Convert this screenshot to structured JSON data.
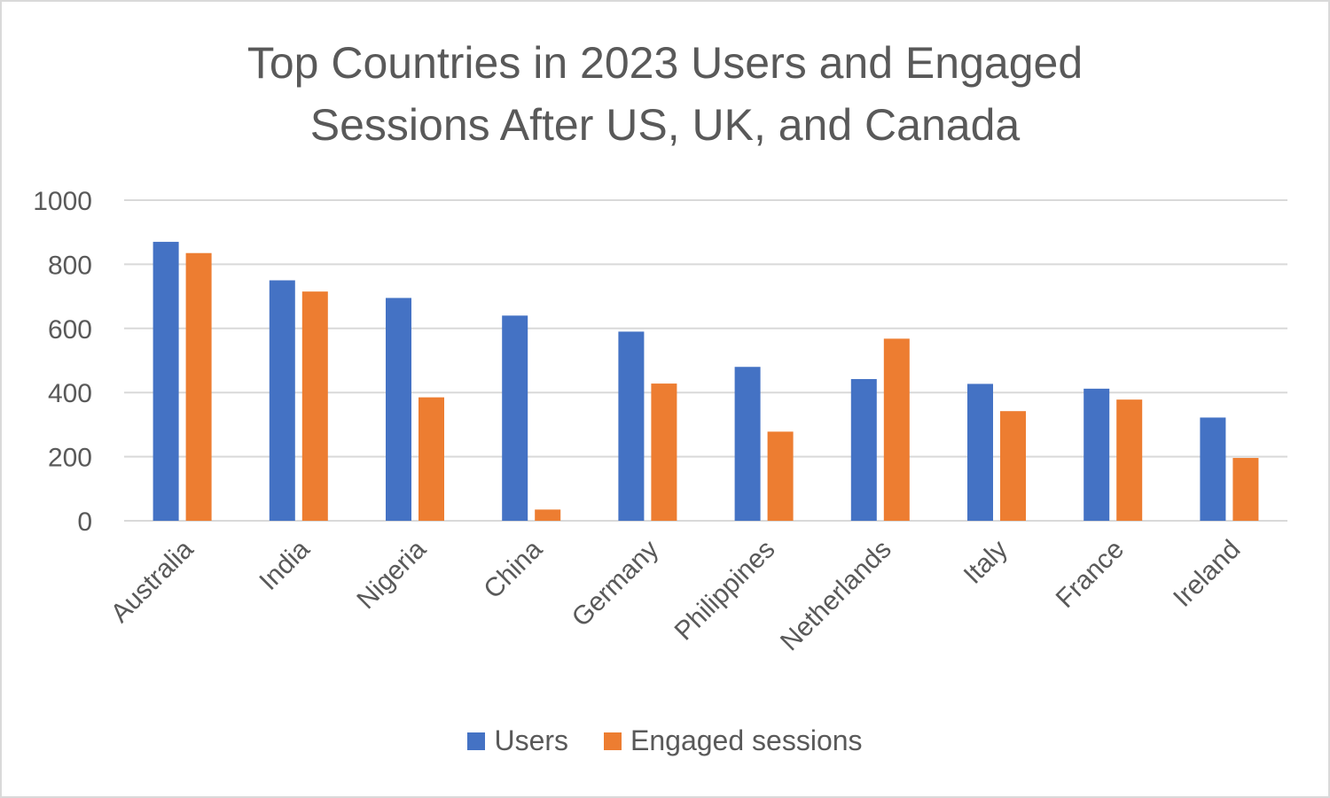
{
  "chart_data": {
    "type": "bar",
    "title_lines": [
      "Top Countries in 2023 Users and Engaged",
      "Sessions After US, UK, and Canada"
    ],
    "categories": [
      "Australia",
      "India",
      "Nigeria",
      "China",
      "Germany",
      "Philippines",
      "Netherlands",
      "Italy",
      "France",
      "Ireland"
    ],
    "series": [
      {
        "name": "Users",
        "color": "#4472c4",
        "values": [
          870,
          750,
          695,
          640,
          590,
          480,
          442,
          427,
          412,
          322
        ]
      },
      {
        "name": "Engaged sessions",
        "color": "#ed7d31",
        "values": [
          835,
          715,
          385,
          35,
          428,
          278,
          568,
          342,
          378,
          196
        ]
      }
    ],
    "yticks": [
      "0",
      "200",
      "400",
      "600",
      "800",
      "1000"
    ],
    "ylim": [
      0,
      1000
    ],
    "xlabel": "",
    "ylabel": "",
    "grid": true,
    "legend_position": "bottom"
  }
}
